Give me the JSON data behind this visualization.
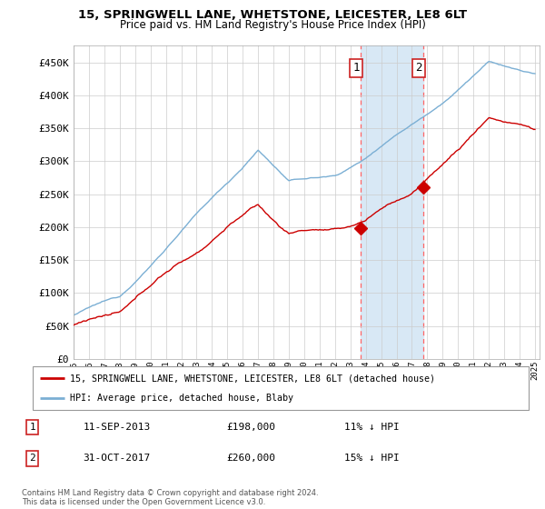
{
  "title1": "15, SPRINGWELL LANE, WHETSTONE, LEICESTER, LE8 6LT",
  "title2": "Price paid vs. HM Land Registry's House Price Index (HPI)",
  "ylabel_ticks": [
    "£0",
    "£50K",
    "£100K",
    "£150K",
    "£200K",
    "£250K",
    "£300K",
    "£350K",
    "£400K",
    "£450K"
  ],
  "ytick_vals": [
    0,
    50000,
    100000,
    150000,
    200000,
    250000,
    300000,
    350000,
    400000,
    450000
  ],
  "ylim": [
    0,
    475000
  ],
  "xstart_year": 1995,
  "xend_year": 2025,
  "legend_line1": "15, SPRINGWELL LANE, WHETSTONE, LEICESTER, LE8 6LT (detached house)",
  "legend_line2": "HPI: Average price, detached house, Blaby",
  "sale1_date": "11-SEP-2013",
  "sale1_price": 198000,
  "sale1_note": "11% ↓ HPI",
  "sale2_date": "31-OCT-2017",
  "sale2_price": 260000,
  "sale2_note": "15% ↓ HPI",
  "footer": "Contains HM Land Registry data © Crown copyright and database right 2024.\nThis data is licensed under the Open Government Licence v3.0.",
  "hpi_color": "#7BAFD4",
  "price_color": "#CC0000",
  "sale_marker_color": "#CC0000",
  "vline_color": "#FF6666",
  "shade_color": "#D8E8F5",
  "background_color": "#FFFFFF",
  "grid_color": "#CCCCCC"
}
